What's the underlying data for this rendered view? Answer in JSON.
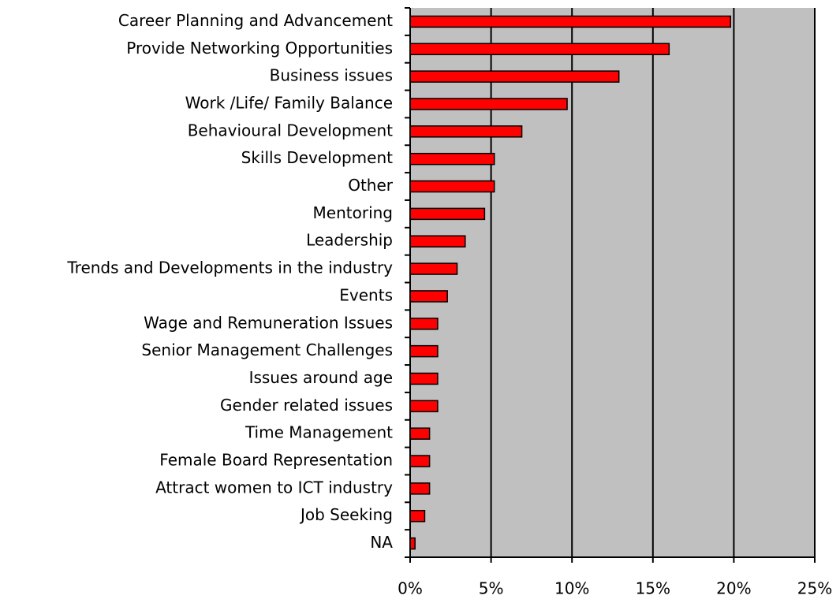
{
  "chart_data": {
    "type": "bar",
    "orientation": "horizontal",
    "categories": [
      "Career Planning and Advancement",
      "Provide Networking Opportunities",
      "Business issues",
      "Work /Life/ Family Balance",
      "Behavioural Development",
      "Skills Development",
      "Other",
      "Mentoring",
      "Leadership",
      "Trends and Developments in the industry",
      "Events",
      "Wage and Remuneration Issues",
      "Senior Management Challenges",
      "Issues around age ",
      "Gender related issues",
      "Time Management",
      "Female Board Representation",
      "Attract women to ICT industry",
      "Job Seeking",
      "NA"
    ],
    "values": [
      19.8,
      16.0,
      12.9,
      9.7,
      6.9,
      5.2,
      5.2,
      4.6,
      3.4,
      2.9,
      2.3,
      1.7,
      1.7,
      1.7,
      1.7,
      1.2,
      1.2,
      1.2,
      0.9,
      0.3
    ],
    "color": "#ff0000",
    "xlim": [
      0,
      25
    ],
    "xticks": [
      {
        "value": 0,
        "label": "0%"
      },
      {
        "value": 5,
        "label": "5%"
      },
      {
        "value": 10,
        "label": "10%"
      },
      {
        "value": 15,
        "label": "15%"
      },
      {
        "value": 20,
        "label": "20%"
      },
      {
        "value": 25,
        "label": "25%"
      }
    ],
    "grid": true,
    "plot_background": "#c0c0c0"
  }
}
